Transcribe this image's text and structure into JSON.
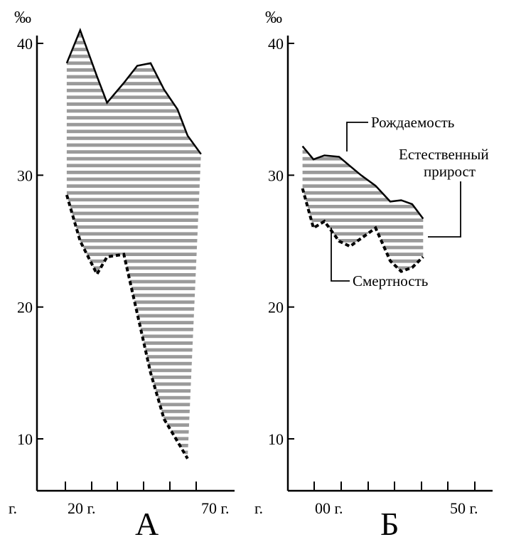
{
  "chart_data": [
    {
      "type": "area",
      "panel_label": "А",
      "y_unit": "‰",
      "yticks": [
        10,
        20,
        30,
        40
      ],
      "ylim": [
        6.2,
        41.5
      ],
      "x_unit_label": "г.",
      "x_labels": [
        "20 г.",
        "70 г."
      ],
      "x": [
        1920,
        1924,
        1929,
        1932,
        1937,
        1941,
        1945,
        1949,
        1953,
        1956,
        1960,
        1964
      ],
      "series": [
        {
          "name": "",
          "style": "solid",
          "values": [
            38.5,
            41.0,
            37.5,
            35.5,
            37.0,
            38.3,
            38.5,
            36.5,
            35.0,
            33.0,
            31.6,
            null
          ]
        },
        {
          "name": "",
          "style": "dashed",
          "values": [
            28.5,
            25.0,
            22.5,
            23.8,
            24.0,
            19.5,
            15.0,
            11.5,
            9.8,
            8.5,
            null,
            null
          ]
        }
      ],
      "grid": false,
      "fill": "horizontal-hatch"
    },
    {
      "type": "area",
      "panel_label": "Б",
      "y_unit": "‰",
      "yticks": [
        10,
        20,
        30,
        40
      ],
      "ylim": [
        6.2,
        41.5
      ],
      "x_unit_label": "г.",
      "x_labels": [
        "00 г.",
        "50 г."
      ],
      "x": [
        1900,
        1903,
        1906,
        1910,
        1913,
        1916,
        1920,
        1924,
        1927,
        1930,
        1933,
        1935,
        1938,
        1940
      ],
      "series": [
        {
          "name": "Рождаемость",
          "style": "solid",
          "values": [
            32.2,
            31.2,
            31.5,
            31.4,
            30.7,
            30.0,
            29.2,
            28.0,
            28.1,
            27.8,
            26.7,
            null,
            null,
            null
          ]
        },
        {
          "name": "Смертность",
          "style": "dashed",
          "values": [
            29.0,
            26.0,
            26.5,
            25.0,
            24.6,
            25.2,
            26.0,
            23.5,
            22.7,
            23.0,
            23.8,
            null,
            null,
            null
          ]
        }
      ],
      "grid": false,
      "fill": "horizontal-hatch",
      "annotations": [
        "Рождаемость",
        "Естественный",
        "прирост",
        "Смертность"
      ]
    }
  ]
}
